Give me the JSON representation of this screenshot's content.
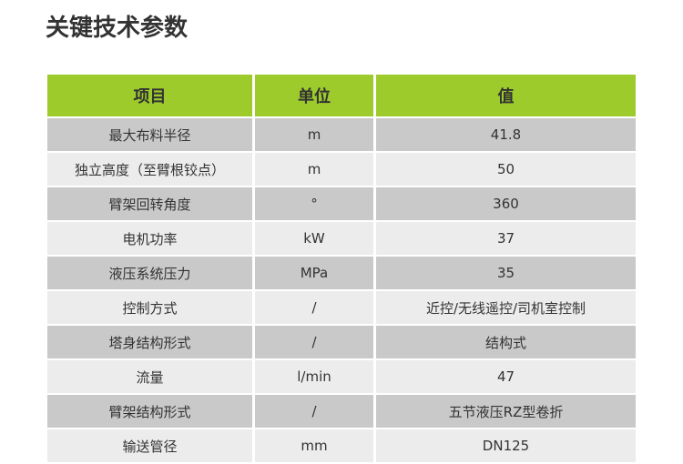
{
  "title": "关键技术参数",
  "headers": [
    "项目",
    "单位",
    "值"
  ],
  "rows": [
    [
      "最大布料半径",
      "m",
      "41.8"
    ],
    [
      "独立高度（至臂根铰点）",
      "m",
      "50"
    ],
    [
      "臂架回转角度",
      "°",
      "360"
    ],
    [
      "电机功率",
      "kW",
      "37"
    ],
    [
      "液压系统压力",
      "MPa",
      "35"
    ],
    [
      "控制方式",
      "/",
      "近控/无线遥控/司机室控制"
    ],
    [
      "塔身结构形式",
      "/",
      "结构式"
    ],
    [
      "流量",
      "l/min",
      "47"
    ],
    [
      "臂架结构形式",
      "/",
      "五节液压RZ型卷折"
    ],
    [
      "输送管径",
      "mm",
      "DN125"
    ]
  ]
}
